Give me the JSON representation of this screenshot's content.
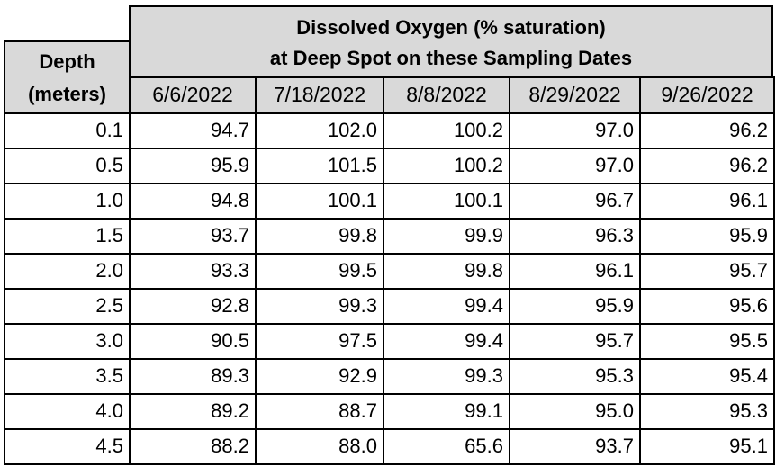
{
  "header": {
    "title_lines": [
      "Dissolved Oxygen (% saturation)",
      "at Deep Spot on these Sampling Dates"
    ],
    "depth_label": [
      "Depth",
      "(meters)"
    ],
    "dates": [
      "6/6/2022",
      "7/18/2022",
      "8/8/2022",
      "8/29/2022",
      "9/26/2022"
    ]
  },
  "table": {
    "rows": [
      [
        "0.1",
        "94.7",
        "102.0",
        "100.2",
        "97.0",
        "96.2"
      ],
      [
        "0.5",
        "95.9",
        "101.5",
        "100.2",
        "97.0",
        "96.2"
      ],
      [
        "1.0",
        "94.8",
        "100.1",
        "100.1",
        "96.7",
        "96.1"
      ],
      [
        "1.5",
        "93.7",
        "99.8",
        "99.9",
        "96.3",
        "95.9"
      ],
      [
        "2.0",
        "93.3",
        "99.5",
        "99.8",
        "96.1",
        "95.7"
      ],
      [
        "2.5",
        "92.8",
        "99.3",
        "99.4",
        "95.9",
        "95.6"
      ],
      [
        "3.0",
        "90.5",
        "97.5",
        "99.4",
        "95.7",
        "95.5"
      ],
      [
        "3.5",
        "89.3",
        "92.9",
        "99.3",
        "95.3",
        "95.4"
      ],
      [
        "4.0",
        "89.2",
        "88.7",
        "99.1",
        "95.0",
        "95.3"
      ],
      [
        "4.5",
        "88.2",
        "88.0",
        "65.6",
        "93.7",
        "95.1"
      ]
    ]
  }
}
